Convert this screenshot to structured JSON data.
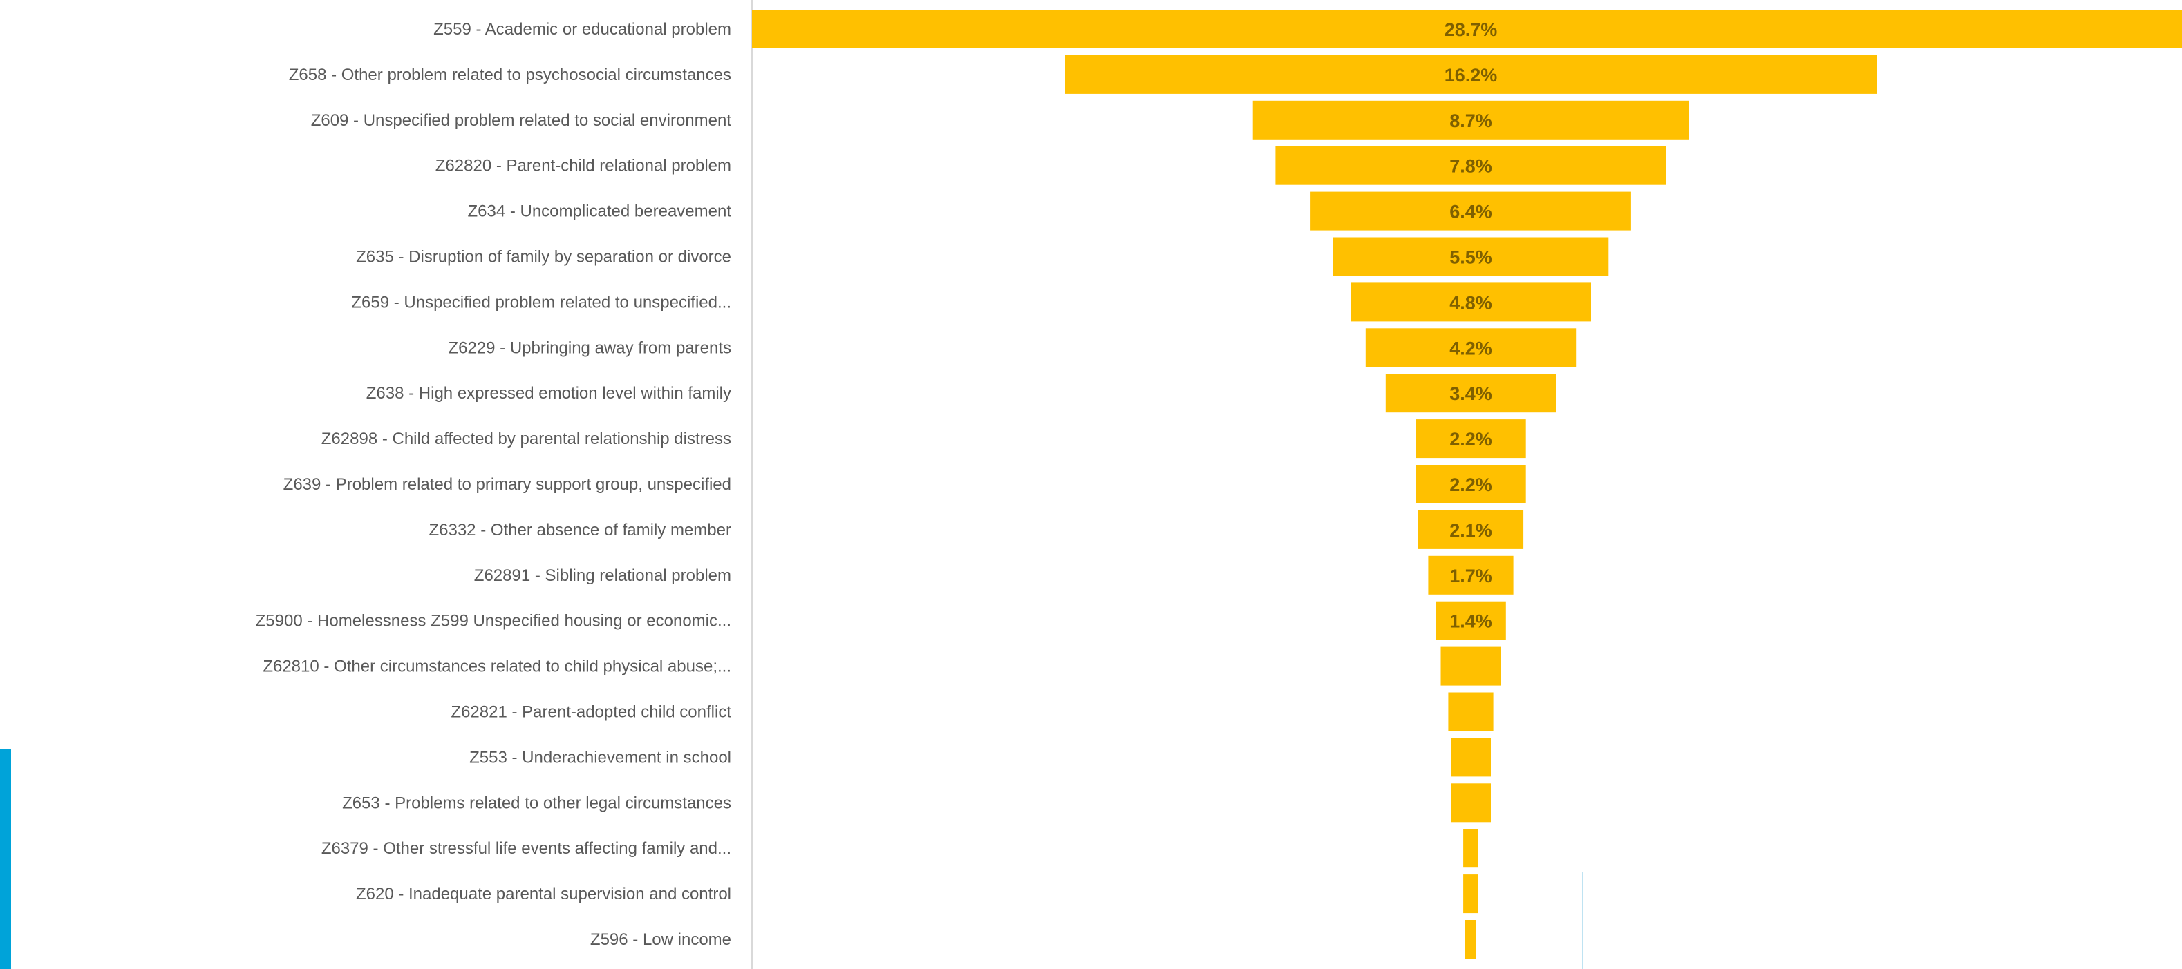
{
  "chart_data": {
    "type": "bar",
    "subtype": "funnel",
    "orientation": "horizontal",
    "title": "",
    "xlabel": "",
    "ylabel": "",
    "categories": [
      "Z559 - Academic or educational problem",
      "Z658   - Other problem related to psychosocial circumstances",
      "Z609    - Unspecified problem related to social environment",
      "Z62820   - Parent-child relational problem",
      "Z634    - Uncomplicated bereavement",
      "Z635    - Disruption of family by separation or divorce",
      "Z659    - Unspecified problem related to unspecified...",
      "Z6229   - Upbringing away from parents",
      "Z638    - High expressed emotion level within family",
      "Z62898  - Child affected by parental relationship distress",
      "Z639    - Problem related to primary support group, unspecified",
      "Z6332   - Other absence of family member",
      "Z62891   - Sibling relational problem",
      "Z5900 - Homelessness Z599 Unspecified housing or economic...",
      "Z62810  - Other circumstances related to child physical abuse;...",
      "Z62821   - Parent-adopted child conflict",
      "Z553    - Underachievement in school",
      "Z653    - Problems related to other legal circumstances",
      "Z6379   - Other stressful life events affecting family and...",
      "Z620    - Inadequate parental supervision and control",
      "Z596    - Low income"
    ],
    "values": [
      28.7,
      16.2,
      8.7,
      7.8,
      6.4,
      5.5,
      4.8,
      4.2,
      3.4,
      2.2,
      2.2,
      2.1,
      1.7,
      1.4,
      1.2,
      0.9,
      0.8,
      0.8,
      0.3,
      0.3,
      0.2
    ],
    "data_labels": [
      "28.7%",
      "16.2%",
      "8.7%",
      "7.8%",
      "6.4%",
      "5.5%",
      "4.8%",
      "4.2%",
      "3.4%",
      "2.2%",
      "2.2%",
      "2.1%",
      "1.7%",
      "1.4%",
      "",
      "",
      "",
      "",
      "",
      "",
      ""
    ],
    "bar_color": "#FFC000",
    "label_color": "#7F6000",
    "text_color": "#595959",
    "axis_color": "#D9D9D9",
    "legend": "none",
    "grid": false
  },
  "accent_color": "#00A3D9"
}
